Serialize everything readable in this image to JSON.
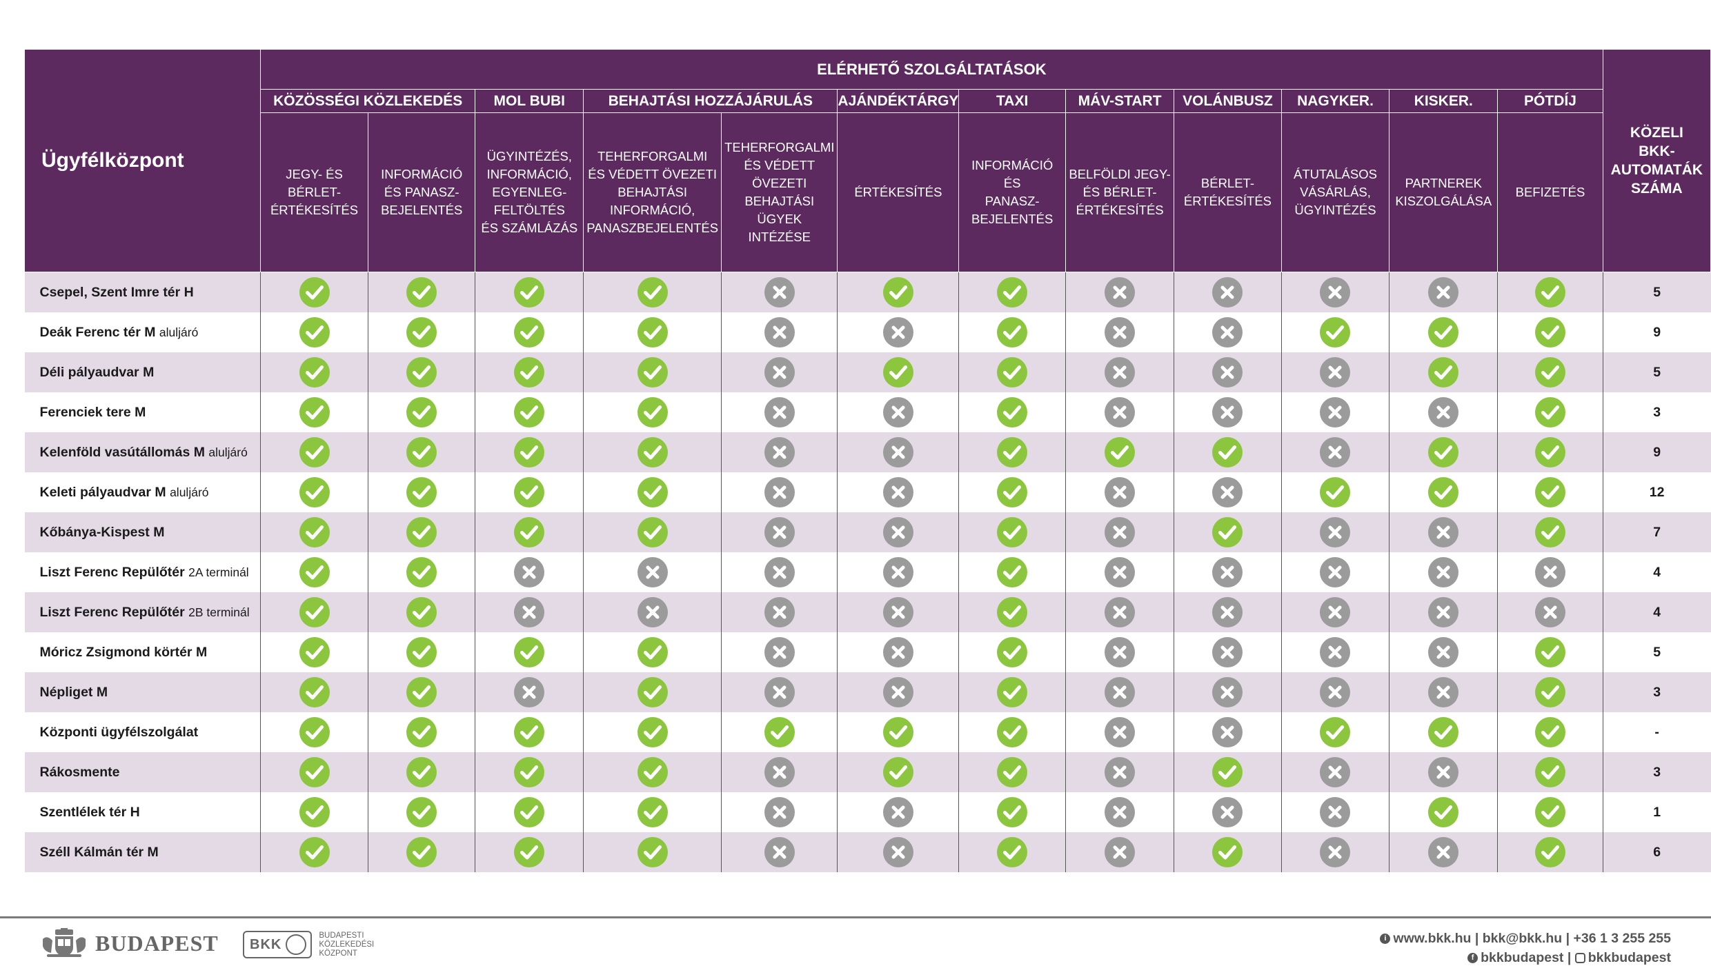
{
  "header": {
    "corner": "Ügyfélközpont",
    "super": "ELÉRHETŐ SZOLGÁLTATÁSOK",
    "last": [
      "KÖZELI",
      "BKK-",
      "AUTOMATÁK",
      "SZÁMA"
    ],
    "groups": [
      {
        "label": "KÖZÖSSÉGI KÖZLEKEDÉS",
        "span": 2
      },
      {
        "label": "MOL BUBI",
        "span": 1
      },
      {
        "label": "BEHAJTÁSI HOZZÁJÁRULÁS",
        "span": 2
      },
      {
        "label": "AJÁNDÉKTÁRGY",
        "span": 1
      },
      {
        "label": "TAXI",
        "span": 1
      },
      {
        "label": "MÁV-START",
        "span": 1
      },
      {
        "label": "VOLÁNBUSZ",
        "span": 1
      },
      {
        "label": "NAGYKER.",
        "span": 1
      },
      {
        "label": "KISKER.",
        "span": 1
      },
      {
        "label": "PÓTDÍJ",
        "span": 1
      }
    ],
    "services": [
      [
        "JEGY- ÉS BÉRLET-",
        "ÉRTÉKESÍTÉS"
      ],
      [
        "INFORMÁCIÓ",
        "ÉS PANASZ-",
        "BEJELENTÉS"
      ],
      [
        "ÜGYINTÉZÉS,",
        "INFORMÁCIÓ,",
        "EGYENLEG-",
        "FELTÖLTÉS",
        "ÉS SZÁMLÁZÁS"
      ],
      [
        "TEHERFORGALMI",
        "ÉS VÉDETT ÖVEZETI",
        "BEHAJTÁSI",
        "INFORMÁCIÓ,",
        "PANASZBEJELENTÉS"
      ],
      [
        "TEHERFORGALMI",
        "ÉS VÉDETT ÖVEZETI",
        "BEHAJTÁSI",
        "ÜGYEK INTÉZÉSE"
      ],
      [
        "ÉRTÉKESÍTÉS"
      ],
      [
        "INFORMÁCIÓ ÉS",
        "PANASZ-",
        "BEJELENTÉS"
      ],
      [
        "BELFÖLDI JEGY-",
        "ÉS BÉRLET-",
        "ÉRTÉKESÍTÉS"
      ],
      [
        "BÉRLET-",
        "ÉRTÉKESÍTÉS"
      ],
      [
        "ÁTUTALÁSOS",
        "VÁSÁRLÁS,",
        "ÜGYINTÉZÉS"
      ],
      [
        "PARTNEREK",
        "KISZOLGÁLÁSA"
      ],
      [
        "BEFIZETÉS"
      ]
    ]
  },
  "rows": [
    {
      "name": "Csepel, Szent Imre tér H",
      "suffix": "",
      "avail": [
        1,
        1,
        1,
        1,
        0,
        1,
        1,
        0,
        0,
        0,
        0,
        1
      ],
      "count": "5"
    },
    {
      "name": "Deák Ferenc tér M",
      "suffix": "aluljáró",
      "avail": [
        1,
        1,
        1,
        1,
        0,
        0,
        1,
        0,
        0,
        1,
        1,
        1
      ],
      "count": "9"
    },
    {
      "name": "Déli pályaudvar M",
      "suffix": "",
      "avail": [
        1,
        1,
        1,
        1,
        0,
        1,
        1,
        0,
        0,
        0,
        1,
        1
      ],
      "count": "5"
    },
    {
      "name": "Ferenciek tere M",
      "suffix": "",
      "avail": [
        1,
        1,
        1,
        1,
        0,
        0,
        1,
        0,
        0,
        0,
        0,
        1
      ],
      "count": "3"
    },
    {
      "name": "Kelenföld vasútállomás M",
      "suffix": "aluljáró",
      "avail": [
        1,
        1,
        1,
        1,
        0,
        0,
        1,
        1,
        1,
        0,
        1,
        1
      ],
      "count": "9"
    },
    {
      "name": "Keleti pályaudvar M",
      "suffix": "aluljáró",
      "avail": [
        1,
        1,
        1,
        1,
        0,
        0,
        1,
        0,
        0,
        1,
        1,
        1
      ],
      "count": "12"
    },
    {
      "name": "Kőbánya-Kispest M",
      "suffix": "",
      "avail": [
        1,
        1,
        1,
        1,
        0,
        0,
        1,
        0,
        1,
        0,
        0,
        1
      ],
      "count": "7"
    },
    {
      "name": "Liszt Ferenc Repülőtér",
      "suffix": "2A terminál",
      "avail": [
        1,
        1,
        0,
        0,
        0,
        0,
        1,
        0,
        0,
        0,
        0,
        0
      ],
      "count": "4"
    },
    {
      "name": "Liszt Ferenc Repülőtér",
      "suffix": "2B terminál",
      "avail": [
        1,
        1,
        0,
        0,
        0,
        0,
        1,
        0,
        0,
        0,
        0,
        0
      ],
      "count": "4"
    },
    {
      "name": "Móricz Zsigmond körtér M",
      "suffix": "",
      "avail": [
        1,
        1,
        1,
        1,
        0,
        0,
        1,
        0,
        0,
        0,
        0,
        1
      ],
      "count": "5"
    },
    {
      "name": "Népliget M",
      "suffix": "",
      "avail": [
        1,
        1,
        0,
        1,
        0,
        0,
        1,
        0,
        0,
        0,
        0,
        1
      ],
      "count": "3"
    },
    {
      "name": "Központi ügyfélszolgálat",
      "suffix": "",
      "avail": [
        1,
        1,
        1,
        1,
        1,
        1,
        1,
        0,
        0,
        1,
        1,
        1
      ],
      "count": "-"
    },
    {
      "name": "Rákosmente",
      "suffix": "",
      "avail": [
        1,
        1,
        1,
        1,
        0,
        1,
        1,
        0,
        1,
        0,
        0,
        1
      ],
      "count": "3"
    },
    {
      "name": "Szentlélek tér H",
      "suffix": "",
      "avail": [
        1,
        1,
        1,
        1,
        0,
        0,
        1,
        0,
        0,
        0,
        1,
        1
      ],
      "count": "1"
    },
    {
      "name": "Széll Kálmán tér M",
      "suffix": "",
      "avail": [
        1,
        1,
        1,
        1,
        0,
        0,
        1,
        0,
        1,
        0,
        0,
        1
      ],
      "count": "6"
    }
  ],
  "icons": {
    "available": "check-circle-icon",
    "unavailable": "x-circle-icon"
  },
  "colors": {
    "header_bg": "#5c2a5f",
    "check": "#8cc63f",
    "cross": "#9b9b9b",
    "row_alt": "#e4dae6"
  },
  "footer": {
    "city": "BUDAPEST",
    "bkk_mark": "BKK",
    "bkk_sub": [
      "BUDAPESTI",
      "KÖZLEKEDÉSI",
      "KÖZPONT"
    ],
    "contact_line1": "www.bkk.hu | bkk@bkk.hu | +36 1 3 255 255",
    "contact_line2a": "bkkbudapest |",
    "contact_line2b": "bkkbudapest"
  }
}
